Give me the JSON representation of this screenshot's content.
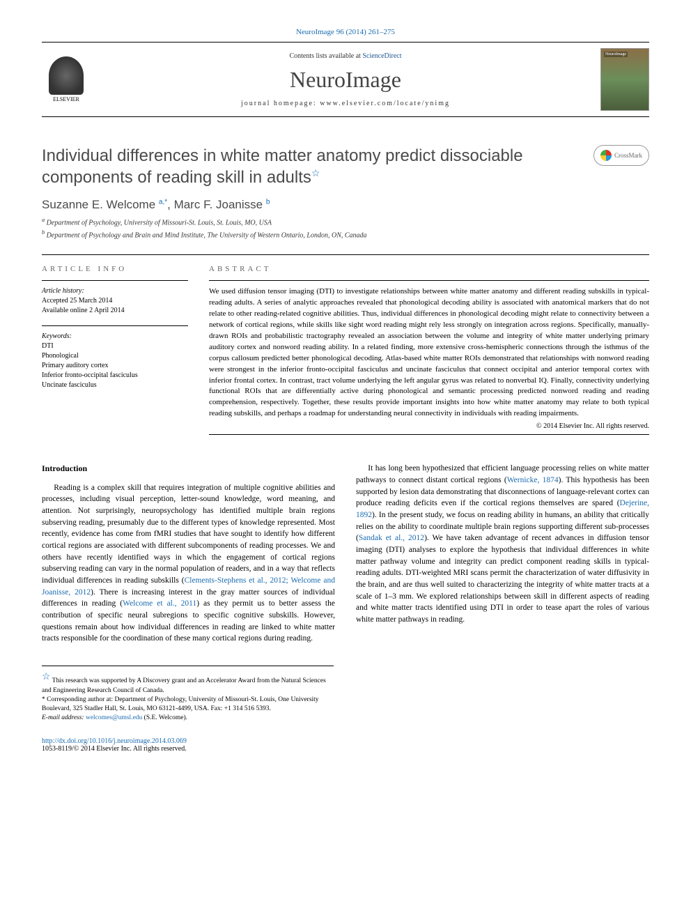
{
  "journal_ref": "NeuroImage 96 (2014) 261–275",
  "contents_prefix": "Contents lists available at ",
  "contents_link": "ScienceDirect",
  "journal_name": "NeuroImage",
  "homepage_prefix": "journal homepage: ",
  "homepage_url": "www.elsevier.com/locate/ynimg",
  "elsevier_label": "ELSEVIER",
  "crossmark_label": "CrossMark",
  "title": "Individual differences in white matter anatomy predict dissociable components of reading skill in adults",
  "authors": {
    "a1_name": "Suzanne E. Welcome ",
    "a1_sup": "a,*",
    "a2_name": ", Marc F. Joanisse ",
    "a2_sup": "b"
  },
  "affiliations": {
    "a": "Department of Psychology, University of Missouri-St. Louis, St. Louis, MO, USA",
    "b": "Department of Psychology and Brain and Mind Institute, The University of Western Ontario, London, ON, Canada"
  },
  "article_info_label": "article info",
  "abstract_label": "abstract",
  "history_label": "Article history:",
  "history_accepted": "Accepted 25 March 2014",
  "history_online": "Available online 2 April 2014",
  "keywords_label": "Keywords:",
  "keywords": {
    "k1": "DTI",
    "k2": "Phonological",
    "k3": "Primary auditory cortex",
    "k4": "Inferior fronto-occipital fasciculus",
    "k5": "Uncinate fasciculus"
  },
  "abstract_text": "We used diffusion tensor imaging (DTI) to investigate relationships between white matter anatomy and different reading subskills in typical-reading adults. A series of analytic approaches revealed that phonological decoding ability is associated with anatomical markers that do not relate to other reading-related cognitive abilities. Thus, individual differences in phonological decoding might relate to connectivity between a network of cortical regions, while skills like sight word reading might rely less strongly on integration across regions. Specifically, manually-drawn ROIs and probabilistic tractography revealed an association between the volume and integrity of white matter underlying primary auditory cortex and nonword reading ability. In a related finding, more extensive cross-hemispheric connections through the isthmus of the corpus callosum predicted better phonological decoding. Atlas-based white matter ROIs demonstrated that relationships with nonword reading were strongest in the inferior fronto-occipital fasciculus and uncinate fasciculus that connect occipital and anterior temporal cortex with inferior frontal cortex. In contrast, tract volume underlying the left angular gyrus was related to nonverbal IQ. Finally, connectivity underlying functional ROIs that are differentially active during phonological and semantic processing predicted nonword reading and reading comprehension, respectively. Together, these results provide important insights into how white matter anatomy may relate to both typical reading subskills, and perhaps a roadmap for understanding neural connectivity in individuals with reading impairments.",
  "copyright": "© 2014 Elsevier Inc. All rights reserved.",
  "intro_heading": "Introduction",
  "intro_p1a": "Reading is a complex skill that requires integration of multiple cognitive abilities and processes, including visual perception, letter-sound knowledge, word meaning, and attention. Not surprisingly, neuropsychology has identified multiple brain regions subserving reading, presumably due to the different types of knowledge represented. Most recently, evidence has come from fMRI studies that have sought to identify how different cortical regions are associated with different subcomponents of reading processes. We and others have recently identified ways in which the engagement of cortical regions subserving reading can vary in the normal population of readers, and in a way that reflects individual differences in reading subskills (",
  "intro_cite1": "Clements-Stephens et al., 2012; Welcome and Joanisse, 2012",
  "intro_p1b": "). There is increasing interest in the gray matter sources of individual differences in reading (",
  "intro_cite2": "Welcome et al., 2011",
  "intro_p1c": ") as they permit us to better assess the contribution of specific ",
  "intro_p1d": "neural subregions to specific cognitive subskills. However, questions remain about how individual differences in reading are linked to white matter tracts responsible for the coordination of these many cortical regions during reading.",
  "intro_p2a": "It has long been hypothesized that efficient language processing relies on white matter pathways to connect distant cortical regions (",
  "intro_cite3": "Wernicke, 1874",
  "intro_p2b": "). This hypothesis has been supported by lesion data demonstrating that disconnections of language-relevant cortex can produce reading deficits even if the cortical regions themselves are spared (",
  "intro_cite4": "Dejerine, 1892",
  "intro_p2c": "). In the present study, we focus on reading ability in humans, an ability that critically relies on the ability to coordinate multiple brain regions supporting different sub-processes (",
  "intro_cite5": "Sandak et al., 2012",
  "intro_p2d": "). We have taken advantage of recent advances in diffusion tensor imaging (DTI) analyses to explore the hypothesis that individual differences in white matter pathway volume and integrity can predict component reading skills in typical-reading adults. DTI-weighted MRI scans permit the characterization of water diffusivity in the brain, and are thus well suited to characterizing the integrity of white matter tracts at a scale of 1–3 mm. We explored relationships between skill in different aspects of reading and white matter tracts identified using DTI in order to tease apart the roles of various white matter pathways in reading.",
  "footnote_star": "This research was supported by A Discovery grant and an Accelerator Award from the Natural Sciences and Engineering Research Council of Canada.",
  "footnote_corr": "Corresponding author at: Department of Psychology, University of Missouri-St. Louis, One University Boulevard, 325 Stadler Hall, St. Louis, MO 63121-4499, USA. Fax: +1 314 516 5393.",
  "footnote_email_label": "E-mail address: ",
  "footnote_email": "welcomes@umsl.edu",
  "footnote_email_suffix": " (S.E. Welcome).",
  "doi": "http://dx.doi.org/10.1016/j.neuroimage.2014.03.069",
  "issn_line": "1053-8119/© 2014 Elsevier Inc. All rights reserved."
}
